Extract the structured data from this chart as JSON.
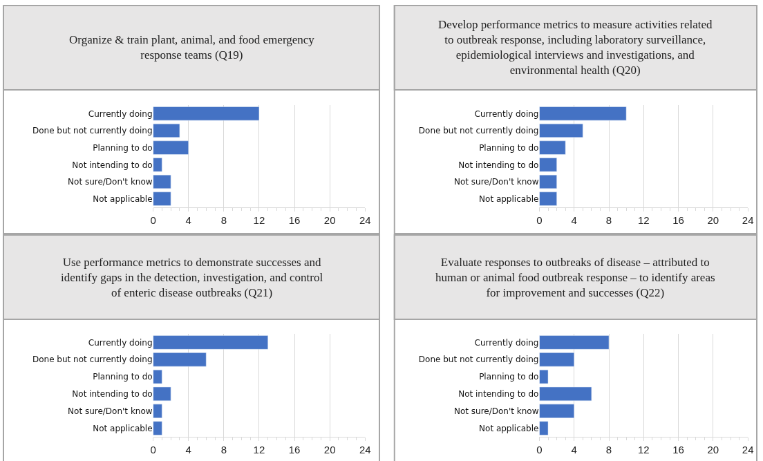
{
  "chart_data": [
    {
      "type": "bar",
      "orientation": "horizontal",
      "title": "Organize & train plant, animal, and food emergency response teams (Q19)",
      "categories": [
        "Currently doing",
        "Done but not currently doing",
        "Planning to do",
        "Not intending to do",
        "Not sure/Don't know",
        "Not applicable"
      ],
      "values": [
        12,
        3,
        4,
        1,
        2,
        2
      ],
      "color": "#4472c4",
      "xlim": [
        0,
        24
      ],
      "xticks": [
        0,
        4,
        8,
        12,
        16,
        20,
        24
      ],
      "grid": "x"
    },
    {
      "type": "bar",
      "orientation": "horizontal",
      "title": "Develop performance metrics to measure activities related to outbreak response, including laboratory surveillance, epidemiological interviews and investigations, and environmental health (Q20)",
      "categories": [
        "Currently doing",
        "Done but not currently doing",
        "Planning to do",
        "Not intending to do",
        "Not sure/Don't know",
        "Not applicable"
      ],
      "values": [
        10,
        5,
        3,
        2,
        2,
        2
      ],
      "color": "#4472c4",
      "xlim": [
        0,
        24
      ],
      "xticks": [
        0,
        4,
        8,
        12,
        16,
        20,
        24
      ],
      "grid": "x"
    },
    {
      "type": "bar",
      "orientation": "horizontal",
      "title": "Use performance metrics to demonstrate successes and identify gaps in the detection, investigation, and control of enteric disease outbreaks (Q21)",
      "categories": [
        "Currently doing",
        "Done but not currently doing",
        "Planning to do",
        "Not intending to do",
        "Not sure/Don't know",
        "Not applicable"
      ],
      "values": [
        13,
        6,
        1,
        2,
        1,
        1
      ],
      "color": "#4472c4",
      "xlim": [
        0,
        24
      ],
      "xticks": [
        0,
        4,
        8,
        12,
        16,
        20,
        24
      ],
      "grid": "x"
    },
    {
      "type": "bar",
      "orientation": "horizontal",
      "title": "Evaluate responses to outbreaks of disease – attributed to human or animal food outbreak response – to identify areas for improvement and successes (Q22)",
      "categories": [
        "Currently doing",
        "Done but not currently doing",
        "Planning to do",
        "Not intending to do",
        "Not sure/Don't know",
        "Not applicable"
      ],
      "values": [
        8,
        4,
        1,
        6,
        4,
        1
      ],
      "color": "#4472c4",
      "xlim": [
        0,
        24
      ],
      "xticks": [
        0,
        4,
        8,
        12,
        16,
        20,
        24
      ],
      "grid": "x"
    }
  ]
}
